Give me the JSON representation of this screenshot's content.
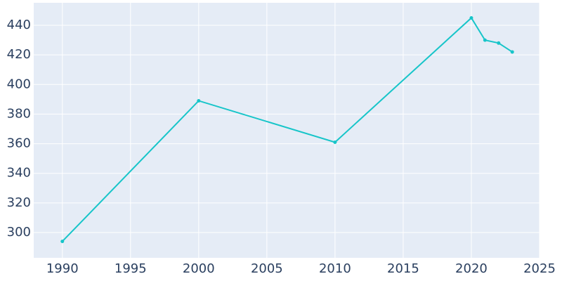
{
  "chart_data": {
    "type": "line",
    "x": [
      1990,
      2000,
      2010,
      2020,
      2021,
      2022,
      2023
    ],
    "series": [
      {
        "color": "#17c5c9",
        "values": [
          294,
          389,
          361,
          445,
          430,
          428,
          422
        ]
      }
    ],
    "xlim": [
      1987.9,
      2025
    ],
    "ylim": [
      282.9,
      455.2
    ],
    "xticks": [
      1990,
      1995,
      2000,
      2005,
      2010,
      2015,
      2020,
      2025
    ],
    "yticks": [
      300,
      320,
      340,
      360,
      380,
      400,
      420,
      440
    ],
    "grid": true
  }
}
